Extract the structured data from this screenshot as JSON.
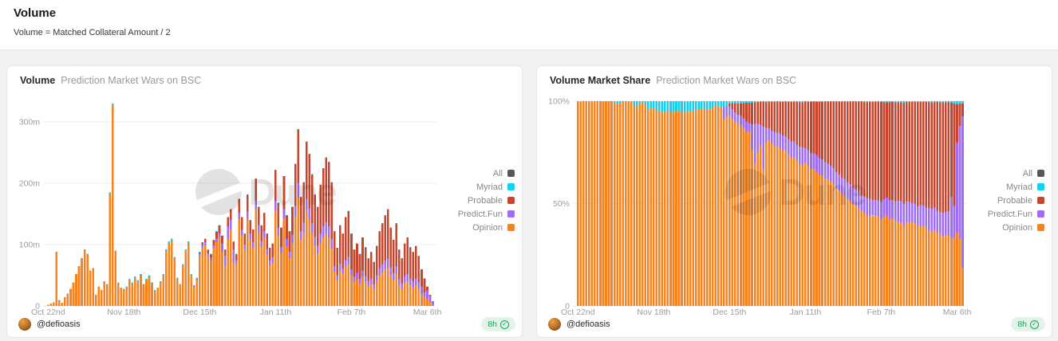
{
  "header": {
    "title": "Volume",
    "subtitle": "Volume = Matched Collateral Amount / 2"
  },
  "watermark_text": "Dune",
  "icons": {
    "check": "✓"
  },
  "colors": {
    "badge_green": "#12A357",
    "card_bg": "#FFFFFF",
    "page_bg": "#F1F1F2"
  },
  "legend": [
    {
      "label": "All",
      "color": "#55575C"
    },
    {
      "label": "Myriad",
      "color": "#0FD1F2"
    },
    {
      "label": "Probable",
      "color": "#C7442D"
    },
    {
      "label": "Predict.Fun",
      "color": "#9E6CF5"
    },
    {
      "label": "Opinion",
      "color": "#F8821C"
    }
  ],
  "cards": [
    {
      "title": "Volume",
      "subtitle": "Prediction Market Wars on BSC",
      "author": "@defioasis",
      "updated": "8h"
    },
    {
      "title": "Volume Market Share",
      "subtitle": "Prediction Market Wars on BSC",
      "author": "@defioasis",
      "updated": "8h"
    }
  ],
  "chart_data": [
    {
      "type": "bar",
      "stacked": true,
      "title": "Volume — Prediction Market Wars on BSC",
      "unit": "USD millions",
      "ylim": [
        0,
        350
      ],
      "grid": true,
      "legend_position": "right",
      "x_tick_labels": [
        "Oct 22nd",
        "Nov 18th",
        "Dec 15th",
        "Jan 11th",
        "Feb 7th",
        "Mar 6th"
      ],
      "x_tick_day_index": [
        0,
        27,
        54,
        81,
        108,
        135
      ],
      "y_ticks": [
        {
          "label": "300m",
          "value": 300
        },
        {
          "label": "200m",
          "value": 200
        },
        {
          "label": "100m",
          "value": 100
        },
        {
          "label": "0",
          "value": 0
        }
      ],
      "stack_order_bottom_to_top": [
        "Opinion",
        "Predict.Fun",
        "Probable",
        "Myriad"
      ],
      "series": [
        {
          "name": "Opinion",
          "color": "#F8821C",
          "values": [
            2,
            4,
            6,
            88,
            10,
            5,
            14,
            20,
            28,
            38,
            52,
            65,
            78,
            91,
            84,
            57.5,
            62,
            18,
            32,
            26,
            39,
            35,
            183,
            328,
            88,
            36.5,
            29,
            27,
            30.5,
            42,
            36,
            45.5,
            40,
            49.5,
            34,
            42,
            47.5,
            36,
            24.5,
            28.5,
            38,
            49.5,
            88,
            101,
            106,
            77,
            44,
            34.5,
            66,
            90,
            102.5,
            50.5,
            31,
            42.5,
            82,
            95,
            99,
            82,
            75,
            94,
            104,
            112,
            88,
            64,
            109,
            124,
            70,
            68,
            142,
            115,
            92,
            142,
            108,
            95,
            158,
            120,
            96,
            110,
            84,
            66,
            70,
            155,
            115,
            86,
            142,
            97,
            78,
            103,
            145,
            178,
            108,
            120,
            155,
            140,
            118,
            98,
            85,
            102,
            112,
            118,
            112,
            94,
            55,
            42,
            58,
            52,
            64,
            68,
            50,
            40,
            45,
            36,
            48,
            40,
            32,
            36,
            28,
            40,
            50,
            55,
            60,
            62,
            50,
            42,
            52,
            34,
            28,
            38,
            40,
            34,
            30,
            34,
            28,
            20,
            15,
            11.5,
            6,
            1.5
          ]
        },
        {
          "name": "Predict.Fun",
          "color": "#9E6CF5",
          "values": [
            0,
            0,
            0,
            0,
            0,
            0,
            0,
            0,
            0,
            0,
            0,
            0,
            0,
            0,
            0,
            0,
            0,
            0,
            0,
            0,
            0,
            0,
            0,
            0,
            0,
            0,
            0,
            0,
            0,
            0,
            0,
            0,
            0,
            0,
            0,
            0,
            0,
            0,
            0,
            0,
            0,
            0,
            0,
            0,
            0,
            0,
            0,
            0,
            0,
            0,
            0,
            0,
            2,
            2.5,
            4,
            5,
            5,
            4,
            4,
            5,
            6,
            6,
            14,
            18,
            20,
            16,
            22,
            6,
            10,
            9,
            8,
            12,
            10,
            9,
            14,
            12,
            10,
            12,
            9,
            8,
            9,
            16,
            13,
            10,
            16,
            12,
            10,
            13,
            18,
            22,
            14,
            16,
            20,
            19,
            17,
            15,
            13,
            16,
            18,
            19,
            18,
            15,
            10,
            8,
            11,
            9,
            11,
            12,
            10,
            8,
            9,
            8,
            10,
            9,
            8,
            9,
            8,
            10,
            12,
            13,
            14,
            15,
            13,
            11,
            13,
            10,
            9,
            11,
            12,
            10,
            10,
            11,
            10,
            12,
            7,
            14,
            10,
            6
          ]
        },
        {
          "name": "Probable",
          "color": "#C7442D",
          "values": [
            0,
            0,
            0,
            0,
            0,
            0,
            0,
            0,
            0,
            0,
            0,
            0,
            0,
            0,
            0,
            0,
            0,
            0,
            0,
            0,
            0,
            0,
            0,
            0,
            0,
            0,
            0,
            0,
            0,
            0,
            0,
            0,
            0,
            0,
            0,
            0,
            0,
            0,
            0,
            0,
            0,
            0,
            0,
            0,
            0,
            0,
            0,
            0,
            0,
            0,
            0,
            0,
            0,
            0,
            1,
            3,
            5,
            5,
            5,
            8,
            11,
            13,
            12,
            9.5,
            15.5,
            17.5,
            12.5,
            10.5,
            22.5,
            20.5,
            17.5,
            27.5,
            21.5,
            20.5,
            35.5,
            29.5,
            25.5,
            29.5,
            24.5,
            20.5,
            22.5,
            50.5,
            39.5,
            31.5,
            53.5,
            38.5,
            33.5,
            45.5,
            68.5,
            87.5,
            55.5,
            65.5,
            92.5,
            88.5,
            79.5,
            68.5,
            63.5,
            79.5,
            94.5,
            104.5,
            104.5,
            92.5,
            56.5,
            44.5,
            62.5,
            56.5,
            69.5,
            74.5,
            57.5,
            43.5,
            47.5,
            40.5,
            53.5,
            46.5,
            37.5,
            42.5,
            35.5,
            47.5,
            59.5,
            66.5,
            73.5,
            80.5,
            64.5,
            54.5,
            69.5,
            47.5,
            40.5,
            52.5,
            59.5,
            51.5,
            47.5,
            52.5,
            43.5,
            27.5,
            22.5,
            6,
            2,
            0.5
          ]
        },
        {
          "name": "Myriad",
          "color": "#0FD1F2",
          "values": [
            0,
            0,
            0,
            0,
            0,
            0,
            0,
            0,
            0,
            0,
            0,
            0,
            0,
            1,
            1,
            0.5,
            0,
            0,
            0,
            0,
            1,
            1,
            2,
            2,
            2,
            1.5,
            1,
            1,
            1.5,
            2,
            2,
            2.5,
            2,
            2.5,
            2,
            2,
            2.5,
            2,
            1.5,
            1.5,
            2,
            2.5,
            4,
            4,
            4,
            3,
            2,
            1.5,
            2,
            2,
            2.5,
            1.5,
            1,
            1,
            1,
            1,
            1,
            1,
            1,
            1,
            1,
            1,
            1,
            0.5,
            0.5,
            0.5,
            0.5,
            0.5,
            0.5,
            0.5,
            0.5,
            0.5,
            0.5,
            0.5,
            0.5,
            0.5,
            0.5,
            0.5,
            0.5,
            0.5,
            0.5,
            0.5,
            0.5,
            0.5,
            0.5,
            0.5,
            0.5,
            0.5,
            0.5,
            0.5,
            0.5,
            0.5,
            0.5,
            0.5,
            0.5,
            0.5,
            0.5,
            0.5,
            0.5,
            0.5,
            0.5,
            0.5,
            0.5,
            0.5,
            0.5,
            0.5,
            0.5,
            0.5,
            0.5,
            0.5,
            0.5,
            0.5,
            0.5,
            0.5,
            0.5,
            0.5,
            0.5,
            0.5,
            0.5,
            0.5,
            0.5,
            0.5,
            0.5,
            0.5,
            0.5,
            0.5,
            0.5,
            0.5,
            0.5,
            0.5,
            0.5,
            0.5,
            0.5,
            0.5,
            0.5,
            0.5,
            0.2,
            0.1
          ]
        }
      ]
    },
    {
      "type": "bar",
      "stacking": "percent",
      "title": "Volume Market Share — Prediction Market Wars on BSC",
      "ylim": [
        0,
        100
      ],
      "grid": true,
      "legend_position": "right",
      "x_tick_labels": [
        "Oct 22nd",
        "Nov 18th",
        "Dec 15th",
        "Jan 11th",
        "Feb 7th",
        "Mar 6th"
      ],
      "x_tick_day_index": [
        0,
        27,
        54,
        81,
        108,
        135
      ],
      "y_ticks": [
        {
          "label": "100%",
          "value": 100
        },
        {
          "label": "50%",
          "value": 50
        },
        {
          "label": "0",
          "value": 0
        }
      ],
      "stack_order_bottom_to_top": [
        "Opinion",
        "Predict.Fun",
        "Probable",
        "Myriad"
      ],
      "series_from_chart": 0
    }
  ]
}
